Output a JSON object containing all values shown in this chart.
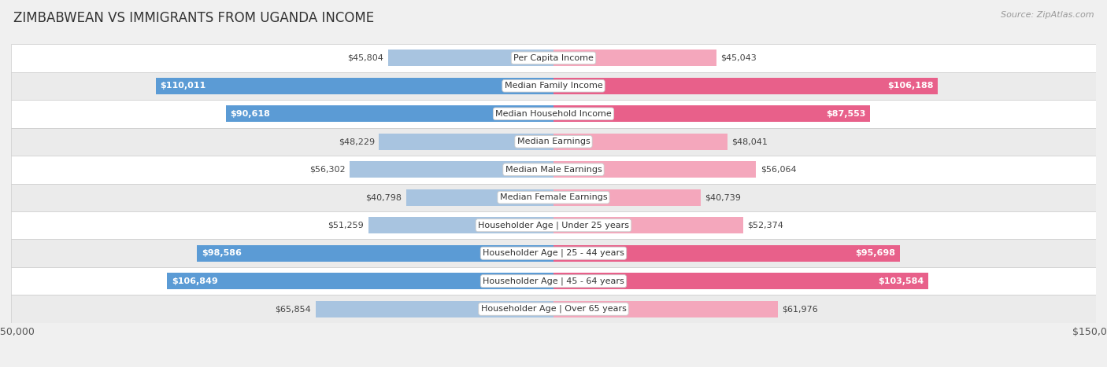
{
  "title": "ZIMBABWEAN VS IMMIGRANTS FROM UGANDA INCOME",
  "source": "Source: ZipAtlas.com",
  "categories": [
    "Per Capita Income",
    "Median Family Income",
    "Median Household Income",
    "Median Earnings",
    "Median Male Earnings",
    "Median Female Earnings",
    "Householder Age | Under 25 years",
    "Householder Age | 25 - 44 years",
    "Householder Age | 45 - 64 years",
    "Householder Age | Over 65 years"
  ],
  "zimbabwean_values": [
    45804,
    110011,
    90618,
    48229,
    56302,
    40798,
    51259,
    98586,
    106849,
    65854
  ],
  "uganda_values": [
    45043,
    106188,
    87553,
    48041,
    56064,
    40739,
    52374,
    95698,
    103584,
    61976
  ],
  "zimbabwean_labels": [
    "$45,804",
    "$110,011",
    "$90,618",
    "$48,229",
    "$56,302",
    "$40,798",
    "$51,259",
    "$98,586",
    "$106,849",
    "$65,854"
  ],
  "uganda_labels": [
    "$45,043",
    "$106,188",
    "$87,553",
    "$48,041",
    "$56,064",
    "$40,739",
    "$52,374",
    "$95,698",
    "$103,584",
    "$61,976"
  ],
  "zimbabwean_color_light": "#a8c4e0",
  "zimbabwean_color_dark": "#5b9bd5",
  "uganda_color_light": "#f4a7bc",
  "uganda_color_dark": "#e8608a",
  "axis_max": 150000,
  "background_color": "#f0f0f0",
  "row_bg_color": "#ffffff",
  "row_alt_bg_color": "#ebebeb",
  "zimbabwean_threshold": 75000,
  "uganda_threshold": 75000,
  "title_fontsize": 12,
  "label_fontsize": 8,
  "category_fontsize": 8,
  "legend_fontsize": 9,
  "source_fontsize": 8
}
